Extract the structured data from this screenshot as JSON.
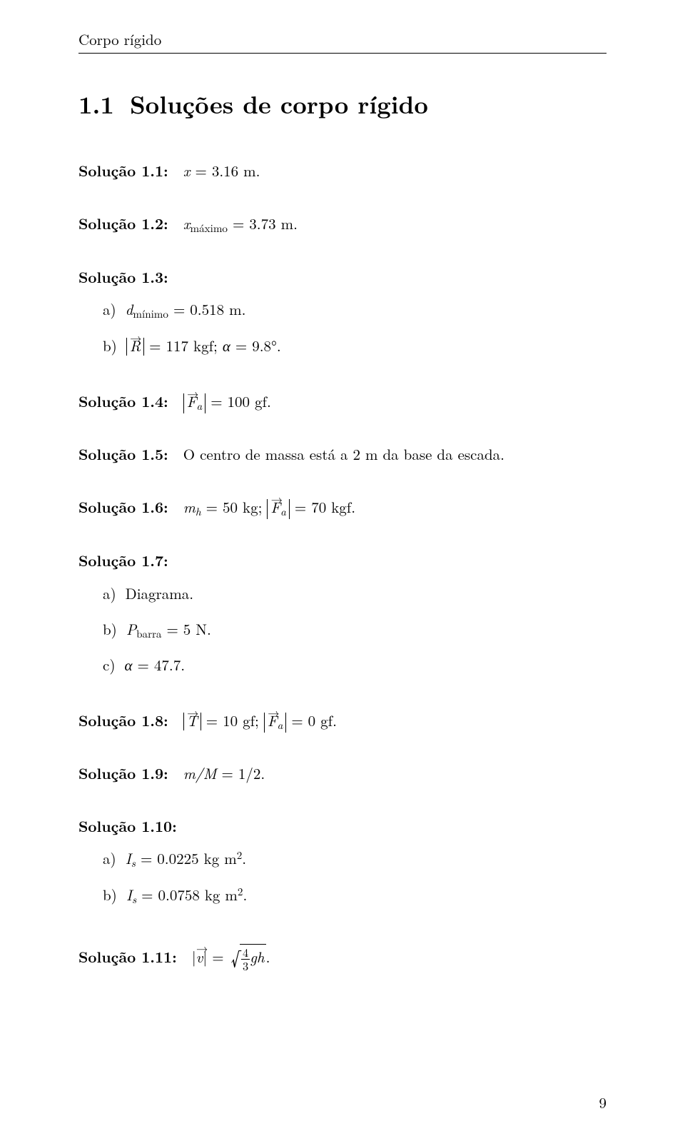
{
  "header": "Corpo rígido",
  "section": {
    "number": "1.1",
    "title": "Soluções de corpo rígido"
  },
  "s1": {
    "label": "Solução 1.1:",
    "var": "x",
    "eq": "= 3.16 m."
  },
  "s2": {
    "label": "Solução 1.2:",
    "var": "x",
    "sub": "máximo",
    "eq": "= 3.73 m."
  },
  "s3": {
    "label": "Solução 1.3:",
    "a": {
      "lt": "a)",
      "var": "d",
      "sub": "mínimo",
      "eq": "= 0.518 m."
    },
    "b": {
      "lt": "b)",
      "vec": "R",
      "eq": "= 117 kgf;",
      "alpha": "α",
      "alphaeq": "= 9.8°."
    }
  },
  "s4": {
    "label": "Solução 1.4:",
    "vec": "F",
    "vecsub": "a",
    "eq": "= 100 gf."
  },
  "s5": {
    "label": "Solução 1.5:",
    "text": "O centro de massa está a 2 m da base da escada."
  },
  "s6": {
    "label": "Solução 1.6:",
    "m": "m",
    "msub": "h",
    "meq": "= 50 kg;",
    "vec": "F",
    "vecsub": "a",
    "veceq": "= 70 kgf."
  },
  "s7": {
    "label": "Solução 1.7:",
    "a": {
      "lt": "a)",
      "text": "Diagrama."
    },
    "b": {
      "lt": "b)",
      "var": "P",
      "sub": "barra",
      "eq": "= 5 N."
    },
    "c": {
      "lt": "c)",
      "alpha": "α",
      "eq": "= 47.7."
    }
  },
  "s8": {
    "label": "Solução 1.8:",
    "vec1": "T",
    "eq1": "= 10 gf;",
    "vec2": "F",
    "vec2sub": "a",
    "eq2": "= 0 gf."
  },
  "s9": {
    "label": "Solução 1.9:",
    "lhs": "m/M",
    "eq": "= 1/2."
  },
  "s10": {
    "label": "Solução 1.10:",
    "a": {
      "lt": "a)",
      "var": "I",
      "sub": "s",
      "eq": "= 0.0225 kg m",
      "exp": "2",
      "dot": "."
    },
    "b": {
      "lt": "b)",
      "var": "I",
      "sub": "s",
      "eq": "= 0.0758 kg m",
      "exp": "2",
      "dot": "."
    }
  },
  "s11": {
    "label": "Solução 1.11:",
    "lhs_open": "|",
    "vec": "v",
    "lhs_close": "|",
    "eq": "=",
    "fnum": "4",
    "fden": "3",
    "tail": "gh",
    "dot": "."
  },
  "pagenum": "9"
}
